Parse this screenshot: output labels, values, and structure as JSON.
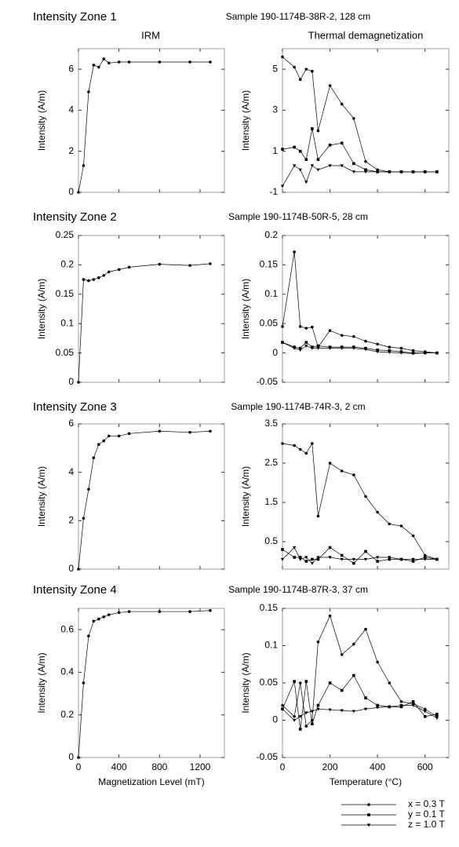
{
  "headers": {
    "left": "IRM",
    "right": "Thermal demagnetization"
  },
  "zones": [
    {
      "title": "Intensity Zone 1",
      "sample": "Sample 190-1174B-38R-2, 128 cm"
    },
    {
      "title": "Intensity Zone 2",
      "sample": "Sample 190-1174B-50R-5, 28 cm"
    },
    {
      "title": "Intensity Zone 3",
      "sample": "Sample 190-1174B-74R-3, 2 cm"
    },
    {
      "title": "Intensity Zone 4",
      "sample": "Sample 190-1174B-87R-3, 37 cm"
    }
  ],
  "chart_data": [
    {
      "type": "line",
      "ylabel": "Intensity (A/m)",
      "x": [
        0,
        50,
        100,
        150,
        200,
        250,
        300,
        400,
        500,
        800,
        1100,
        1300
      ],
      "xlim": [
        0,
        1440
      ],
      "xticks": [
        0,
        400,
        800,
        1200
      ],
      "ylim": [
        0,
        7
      ],
      "yticks": [
        0,
        2,
        4,
        6
      ],
      "series": [
        {
          "color": "#000",
          "marker": "circle",
          "values": [
            0,
            1.3,
            4.9,
            6.2,
            6.1,
            6.5,
            6.3,
            6.35,
            6.35,
            6.35,
            6.35,
            6.35
          ]
        }
      ]
    },
    {
      "type": "line",
      "ylabel": "Intensity (A/m)",
      "x": [
        0,
        50,
        75,
        100,
        125,
        150,
        200,
        250,
        300,
        350,
        400,
        450,
        500,
        550,
        600,
        650
      ],
      "xlim": [
        0,
        700
      ],
      "xticks": [
        0,
        200,
        400,
        600
      ],
      "ylim": [
        -1,
        6
      ],
      "yticks": [
        -1,
        1,
        3,
        5
      ],
      "series": [
        {
          "color": "#000",
          "marker": "circle",
          "values": [
            5.6,
            5.1,
            4.5,
            5.0,
            4.9,
            2.0,
            4.2,
            3.3,
            2.6,
            0.5,
            0.1,
            0,
            0,
            0,
            0,
            0
          ]
        },
        {
          "color": "#000",
          "marker": "square",
          "values": [
            1.1,
            1.2,
            1.0,
            0.6,
            2.1,
            0.6,
            1.3,
            1.4,
            0.4,
            0.1,
            0,
            0,
            0,
            0,
            0,
            0
          ]
        },
        {
          "color": "#000",
          "marker": "triangle",
          "values": [
            -0.7,
            0.3,
            0.1,
            -0.5,
            0.3,
            0.1,
            0.3,
            0.3,
            0,
            0,
            0,
            0,
            0,
            0,
            0,
            0
          ]
        }
      ]
    },
    {
      "type": "line",
      "ylabel": "Intensity (A/m)",
      "x": [
        0,
        50,
        100,
        150,
        200,
        250,
        300,
        400,
        500,
        800,
        1100,
        1300
      ],
      "xlim": [
        0,
        1440
      ],
      "xticks": [
        0,
        400,
        800,
        1200
      ],
      "ylim": [
        0,
        0.25
      ],
      "yticks": [
        0,
        0.05,
        0.1,
        0.15,
        0.2,
        0.25
      ],
      "series": [
        {
          "color": "#000",
          "marker": "circle",
          "values": [
            0,
            0.175,
            0.173,
            0.175,
            0.178,
            0.182,
            0.188,
            0.192,
            0.196,
            0.201,
            0.199,
            0.202
          ]
        }
      ]
    },
    {
      "type": "line",
      "ylabel": "Intensity (A/m)",
      "x": [
        0,
        50,
        75,
        100,
        125,
        150,
        200,
        250,
        300,
        350,
        400,
        450,
        500,
        550,
        600,
        650
      ],
      "xlim": [
        0,
        700
      ],
      "xticks": [
        0,
        200,
        400,
        600
      ],
      "ylim": [
        -0.05,
        0.2
      ],
      "yticks": [
        -0.05,
        0,
        0.05,
        0.1,
        0.15,
        0.2
      ],
      "series": [
        {
          "color": "#000",
          "marker": "circle",
          "values": [
            0.045,
            0.172,
            0.045,
            0.042,
            0.044,
            0.01,
            0.038,
            0.03,
            0.028,
            0.02,
            0.015,
            0.01,
            0.008,
            0.004,
            0.002,
            0
          ]
        },
        {
          "color": "#000",
          "marker": "square",
          "values": [
            0.018,
            0.01,
            0.008,
            0.018,
            0.01,
            0.012,
            0.01,
            0.01,
            0.01,
            0.008,
            0.005,
            0.004,
            0.002,
            0,
            0,
            0
          ]
        },
        {
          "color": "#000",
          "marker": "triangle",
          "values": [
            0.018,
            0.008,
            0.005,
            0.012,
            0.008,
            0.008,
            0.008,
            0.008,
            0.008,
            0.006,
            0.002,
            0.001,
            0,
            -0.001,
            0,
            0
          ]
        }
      ]
    },
    {
      "type": "line",
      "ylabel": "Intensity (A/m)",
      "x": [
        0,
        50,
        100,
        150,
        200,
        250,
        300,
        400,
        500,
        800,
        1100,
        1300
      ],
      "xlim": [
        0,
        1440
      ],
      "xticks": [
        0,
        400,
        800,
        1200
      ],
      "ylim": [
        0,
        6
      ],
      "yticks": [
        0,
        2,
        4,
        6
      ],
      "series": [
        {
          "color": "#000",
          "marker": "circle",
          "values": [
            0,
            2.1,
            3.3,
            4.6,
            5.15,
            5.3,
            5.5,
            5.5,
            5.6,
            5.7,
            5.65,
            5.7
          ]
        }
      ]
    },
    {
      "type": "line",
      "ylabel": "Intensity (A/m)",
      "x": [
        0,
        50,
        75,
        100,
        125,
        150,
        200,
        250,
        300,
        350,
        400,
        450,
        500,
        550,
        600,
        650
      ],
      "xlim": [
        0,
        700
      ],
      "xticks": [
        0,
        200,
        400,
        600
      ],
      "ylim": [
        -0.2,
        3.5
      ],
      "yticks": [
        0.5,
        1.5,
        2.5,
        3.5
      ],
      "series": [
        {
          "color": "#000",
          "marker": "circle",
          "values": [
            3.0,
            2.95,
            2.85,
            2.75,
            3.0,
            1.15,
            2.5,
            2.3,
            2.2,
            1.65,
            1.25,
            0.95,
            0.9,
            0.65,
            0.15,
            0.05
          ]
        },
        {
          "color": "#000",
          "marker": "square",
          "values": [
            0.3,
            0.1,
            0.1,
            0,
            0.05,
            0.05,
            0.35,
            0.15,
            -0.05,
            0.25,
            0,
            0.05,
            0.05,
            0,
            0.1,
            0.05
          ]
        },
        {
          "color": "#000",
          "marker": "triangle",
          "values": [
            0.05,
            0.35,
            0.05,
            0.1,
            -0.05,
            0.1,
            0.1,
            0.05,
            0.05,
            0.05,
            0.1,
            0.1,
            0.05,
            0.05,
            0.05,
            0.05
          ]
        }
      ]
    },
    {
      "type": "line",
      "ylabel": "Intensity (A/m)",
      "xlabel": "Magnetization Level (mT)",
      "x": [
        0,
        50,
        100,
        150,
        200,
        250,
        300,
        400,
        500,
        800,
        1100,
        1300
      ],
      "xlim": [
        0,
        1440
      ],
      "xticks": [
        0,
        400,
        800,
        1200
      ],
      "ylim": [
        0,
        0.7
      ],
      "yticks": [
        0,
        0.2,
        0.4,
        0.6
      ],
      "series": [
        {
          "color": "#000",
          "marker": "circle",
          "values": [
            0,
            0.35,
            0.57,
            0.64,
            0.65,
            0.66,
            0.67,
            0.68,
            0.685,
            0.685,
            0.685,
            0.69
          ]
        }
      ]
    },
    {
      "type": "line",
      "ylabel": "Intensity (A/m)",
      "xlabel": "Temperature (°C)",
      "x": [
        0,
        50,
        75,
        100,
        125,
        150,
        200,
        250,
        300,
        350,
        400,
        450,
        500,
        550,
        600,
        650
      ],
      "xlim": [
        0,
        700
      ],
      "xticks": [
        0,
        200,
        400,
        600
      ],
      "ylim": [
        -0.05,
        0.15
      ],
      "yticks": [
        -0.05,
        0,
        0.05,
        0.1,
        0.15
      ],
      "legend": "bottom-right",
      "series": [
        {
          "name": "x = 0.3 T",
          "color": "#000",
          "marker": "circle",
          "values": [
            0.02,
            0.005,
            0.05,
            -0.008,
            0,
            0.105,
            0.14,
            0.088,
            0.102,
            0.122,
            0.078,
            0.05,
            0.025,
            0.022,
            0.015,
            0.005
          ]
        },
        {
          "name": "y = 0.1 T",
          "color": "#000",
          "marker": "square",
          "values": [
            0.015,
            0.052,
            -0.012,
            0.052,
            -0.005,
            0.02,
            0.05,
            0.04,
            0.06,
            0.03,
            0.02,
            0.018,
            0.018,
            0.025,
            0.005,
            0.008
          ]
        },
        {
          "name": "z = 1.0 T",
          "color": "#000",
          "marker": "triangle",
          "values": [
            0.015,
            0,
            0.005,
            0.01,
            0.012,
            0.015,
            0.014,
            0.013,
            0.012,
            0.015,
            0.017,
            0.018,
            0.02,
            0.02,
            0.012,
            0.003
          ]
        }
      ]
    }
  ]
}
